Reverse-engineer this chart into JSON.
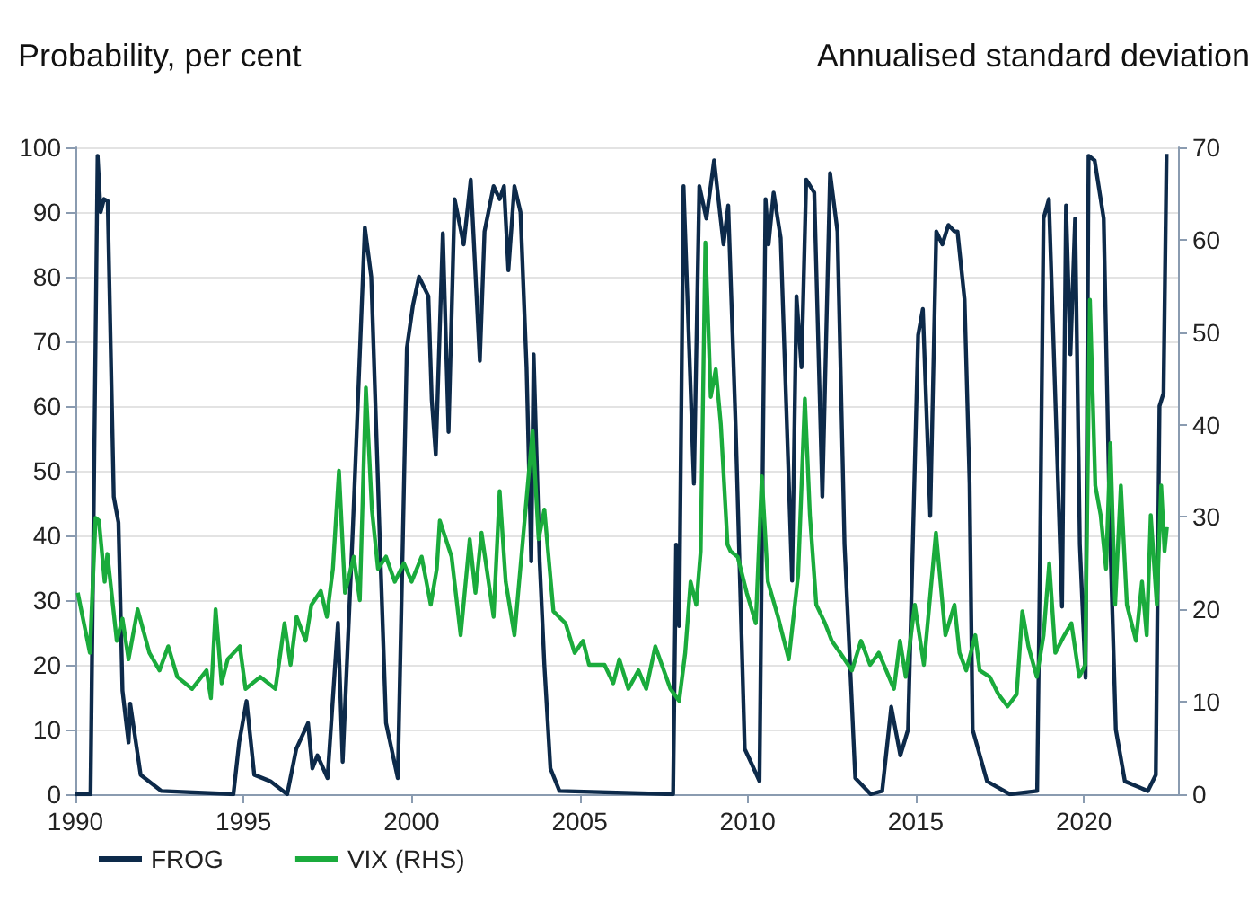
{
  "chart_data": {
    "type": "line",
    "ylabel": "Probability, per cent",
    "y2label": "Annualised standard deviation",
    "xlim": [
      1990,
      2022.8
    ],
    "xticks": [
      1990,
      1995,
      2000,
      2005,
      2010,
      2015,
      2020
    ],
    "ylim": [
      0,
      100
    ],
    "yticks": [
      0,
      10,
      20,
      30,
      40,
      50,
      60,
      70,
      80,
      90,
      100
    ],
    "y2lim": [
      0,
      70
    ],
    "y2ticks": [
      0,
      10,
      20,
      30,
      40,
      50,
      60,
      70
    ],
    "grid": "y",
    "legend": "bottom left",
    "marker": "none",
    "line_style": "solid",
    "series": [
      {
        "name": "FROG",
        "color": "#0d2a4a",
        "x": [
          1990,
          1990.45,
          1990.66,
          1990.75,
          1990.85,
          1990.96,
          1991.14,
          1991.28,
          1991.4,
          1991.58,
          1991.63,
          1991.94,
          1992.56,
          1994.7,
          1994.87,
          1995.09,
          1995.32,
          1995.8,
          1996.3,
          1996.57,
          1996.92,
          1997.05,
          1997.2,
          1997.5,
          1997.81,
          1997.95,
          1998.26,
          1998.61,
          1998.8,
          1999.06,
          1999.24,
          1999.59,
          1999.86,
          2000.04,
          2000.22,
          2000.5,
          2000.6,
          2000.72,
          2000.93,
          2001.1,
          2001.28,
          2001.55,
          2001.76,
          2002.03,
          2002.17,
          2002.44,
          2002.62,
          2002.75,
          2002.88,
          2003.06,
          2003.24,
          2003.42,
          2003.56,
          2003.63,
          2003.81,
          2003.95,
          2004.13,
          2004.4,
          2007.78,
          2007.87,
          2007.96,
          2008.09,
          2008.4,
          2008.56,
          2008.77,
          2009.0,
          2009.28,
          2009.42,
          2009.64,
          2009.91,
          2010.09,
          2010.35,
          2010.53,
          2010.62,
          2010.77,
          2010.98,
          2011.32,
          2011.45,
          2011.6,
          2011.74,
          2011.98,
          2012.22,
          2012.45,
          2012.67,
          2012.88,
          2013.2,
          2013.66,
          2014.0,
          2014.27,
          2014.54,
          2014.77,
          2015.07,
          2015.21,
          2015.43,
          2015.61,
          2015.79,
          2015.97,
          2016.15,
          2016.24,
          2016.45,
          2016.6,
          2016.69,
          2017.12,
          2017.8,
          2018.61,
          2018.7,
          2018.8,
          2018.96,
          2019.35,
          2019.47,
          2019.6,
          2019.74,
          2019.88,
          2020.05,
          2020.14,
          2020.32,
          2020.59,
          2020.77,
          2020.95,
          2021.22,
          2021.9,
          2022.14,
          2022.25,
          2022.37,
          2022.46
        ],
        "values": [
          0,
          0,
          98.7,
          90,
          92,
          91.7,
          46,
          42,
          16,
          8,
          14,
          3,
          0.5,
          0,
          8,
          14.4,
          3,
          2,
          0,
          7,
          11,
          4,
          6,
          2.5,
          26.5,
          5,
          42,
          87.6,
          80,
          38.6,
          11,
          2.5,
          69,
          75.6,
          80,
          77,
          61,
          52.5,
          86.7,
          56,
          92,
          85,
          95,
          67,
          87,
          94,
          92,
          94,
          81,
          94,
          90,
          66,
          36,
          68,
          36,
          20,
          4,
          0.5,
          0,
          38.6,
          26,
          94,
          48,
          94,
          89,
          98,
          85,
          91,
          57,
          7,
          5,
          2,
          92,
          85,
          93,
          86,
          33,
          77,
          66,
          95,
          93,
          46,
          96,
          87,
          38.6,
          2.5,
          0,
          0.5,
          13.5,
          6,
          10,
          71,
          75,
          43,
          87,
          85,
          88,
          87,
          87,
          76.5,
          48,
          10,
          2,
          0,
          0.5,
          38.6,
          89,
          92,
          29,
          91,
          68,
          89,
          38.6,
          18,
          98.7,
          98,
          89,
          42,
          10,
          2,
          0.5,
          3,
          60,
          62,
          99
        ]
      },
      {
        "name": "VIX (RHS)",
        "color": "#1aab3c",
        "axis": "y2",
        "x": [
          1990.07,
          1990.43,
          1990.6,
          1990.7,
          1990.87,
          1990.95,
          1991.23,
          1991.4,
          1991.58,
          1991.85,
          1992.2,
          1992.5,
          1992.76,
          1993.03,
          1993.47,
          1993.9,
          1994.03,
          1994.17,
          1994.35,
          1994.53,
          1994.89,
          1995.06,
          1995.5,
          1995.95,
          1996.22,
          1996.4,
          1996.58,
          1996.85,
          1997.02,
          1997.3,
          1997.48,
          1997.66,
          1997.84,
          1998.02,
          1998.28,
          1998.46,
          1998.64,
          1998.82,
          1999.0,
          1999.24,
          1999.5,
          1999.77,
          2000.0,
          2000.3,
          2000.57,
          2000.75,
          2000.84,
          2001.19,
          2001.46,
          2001.73,
          2001.9,
          2002.08,
          2002.44,
          2002.62,
          2002.8,
          2003.06,
          2003.42,
          2003.6,
          2003.78,
          2003.95,
          2004.22,
          2004.58,
          2004.85,
          2005.1,
          2005.28,
          2005.74,
          2006.0,
          2006.18,
          2006.45,
          2006.75,
          2006.98,
          2007.25,
          2007.7,
          2007.96,
          2008.14,
          2008.3,
          2008.47,
          2008.6,
          2008.74,
          2008.9,
          2009.05,
          2009.2,
          2009.4,
          2009.49,
          2009.7,
          2009.97,
          2010.24,
          2010.42,
          2010.6,
          2010.9,
          2011.22,
          2011.5,
          2011.7,
          2011.85,
          2012.04,
          2012.3,
          2012.5,
          2012.75,
          2013.1,
          2013.37,
          2013.64,
          2013.9,
          2014.35,
          2014.53,
          2014.7,
          2014.97,
          2015.24,
          2015.6,
          2015.88,
          2016.15,
          2016.3,
          2016.5,
          2016.77,
          2016.9,
          2017.2,
          2017.46,
          2017.73,
          2018.0,
          2018.17,
          2018.35,
          2018.6,
          2018.8,
          2018.97,
          2019.15,
          2019.42,
          2019.63,
          2019.86,
          2020.04,
          2020.18,
          2020.34,
          2020.5,
          2020.66,
          2020.79,
          2020.93,
          2021.1,
          2021.28,
          2021.55,
          2021.73,
          2021.87,
          2021.99,
          2022.17,
          2022.3,
          2022.4,
          2022.47
        ],
        "values": [
          21.8,
          15.3,
          29.9,
          29.6,
          23,
          26,
          16.6,
          19,
          14.6,
          20,
          15.3,
          13.4,
          16,
          12.7,
          11.4,
          13.4,
          10.4,
          20,
          12,
          14.6,
          16,
          11.4,
          12.7,
          11.4,
          18.5,
          14,
          19.2,
          16.6,
          20.5,
          22,
          19.2,
          24.4,
          35,
          21.8,
          25.7,
          21,
          44,
          30.8,
          24.4,
          25.7,
          23,
          25,
          23,
          25.7,
          20.5,
          24.4,
          29.6,
          25.7,
          17.2,
          27.6,
          21.8,
          28.3,
          19.2,
          32.8,
          23,
          17.2,
          32,
          39.3,
          27.6,
          30.8,
          19.8,
          18.5,
          15.3,
          16.6,
          14,
          14,
          12,
          14.6,
          11.4,
          13.4,
          11.4,
          16,
          11.4,
          10.1,
          15.3,
          23,
          20.5,
          26.3,
          59.7,
          43,
          46,
          40,
          27,
          26.3,
          25.7,
          21.8,
          18.5,
          34.4,
          23,
          19.2,
          14.6,
          23.7,
          42.8,
          30.2,
          20.5,
          18.5,
          16.6,
          15.3,
          13.4,
          16.6,
          14,
          15.3,
          11.4,
          16.6,
          12.7,
          20.5,
          14,
          28.3,
          17.2,
          20.5,
          15.3,
          13.4,
          17.2,
          13.4,
          12.7,
          10.8,
          9.5,
          10.8,
          19.8,
          16,
          12.7,
          17.2,
          25,
          15.3,
          17.2,
          18.5,
          12.7,
          14,
          53.5,
          33.4,
          30.2,
          24.4,
          38,
          20.5,
          33.4,
          20.5,
          16.6,
          23,
          17.2,
          30.2,
          20.5,
          33.4,
          26.3,
          28.9
        ]
      }
    ]
  }
}
